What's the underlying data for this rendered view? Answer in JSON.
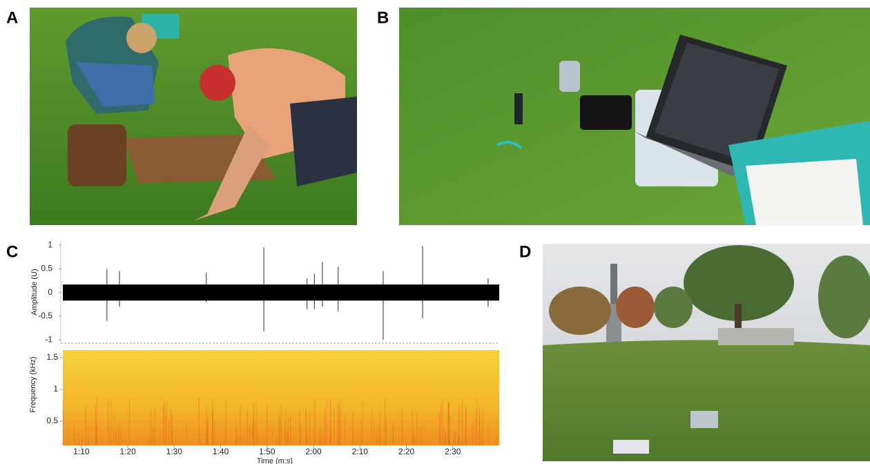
{
  "panels": {
    "a": {
      "label": "A"
    },
    "b": {
      "label": "B"
    },
    "c": {
      "label": "C"
    },
    "d": {
      "label": "D"
    }
  },
  "chart_data": [
    {
      "type": "waveform",
      "y_label": "Amplitude (U)",
      "xlim": [
        66,
        160
      ],
      "ylim": [
        -1.07,
        1.09
      ],
      "yticks": [
        1,
        0.5,
        0,
        -0.5,
        -1
      ],
      "x": [
        66,
        75.5,
        78.2,
        96.9,
        109.3,
        118.6,
        120.2,
        121.9,
        125.3,
        135.0,
        143.5,
        157.6,
        160
      ],
      "max": [
        0.17,
        0.5,
        0.45,
        0.42,
        0.95,
        0.3,
        0.4,
        0.65,
        0.55,
        0.45,
        0.98,
        0.3,
        0.17
      ],
      "min": [
        -0.17,
        -0.6,
        -0.3,
        -0.2,
        -0.82,
        -0.35,
        -0.35,
        -0.3,
        -0.4,
        -1.0,
        -0.55,
        -0.3,
        -0.17
      ],
      "color": "#000000"
    },
    {
      "type": "spectrogram",
      "y_label": "Frequency (kHz)",
      "x_label": "Time (m:s)",
      "xlim": [
        66,
        160
      ],
      "ylim": [
        0.12,
        1.62
      ],
      "yticks": [
        1.5,
        1,
        0.5
      ],
      "xticks": [
        {
          "value": 70,
          "label": "1:10"
        },
        {
          "value": 80,
          "label": "1:20"
        },
        {
          "value": 90,
          "label": "1:30"
        },
        {
          "value": 100,
          "label": "1:40"
        },
        {
          "value": 110,
          "label": "1:50"
        },
        {
          "value": 120,
          "label": "2:00"
        },
        {
          "value": 130,
          "label": "2:10"
        },
        {
          "value": 140,
          "label": "2:20"
        },
        {
          "value": 150,
          "label": "2:30"
        }
      ]
    }
  ]
}
